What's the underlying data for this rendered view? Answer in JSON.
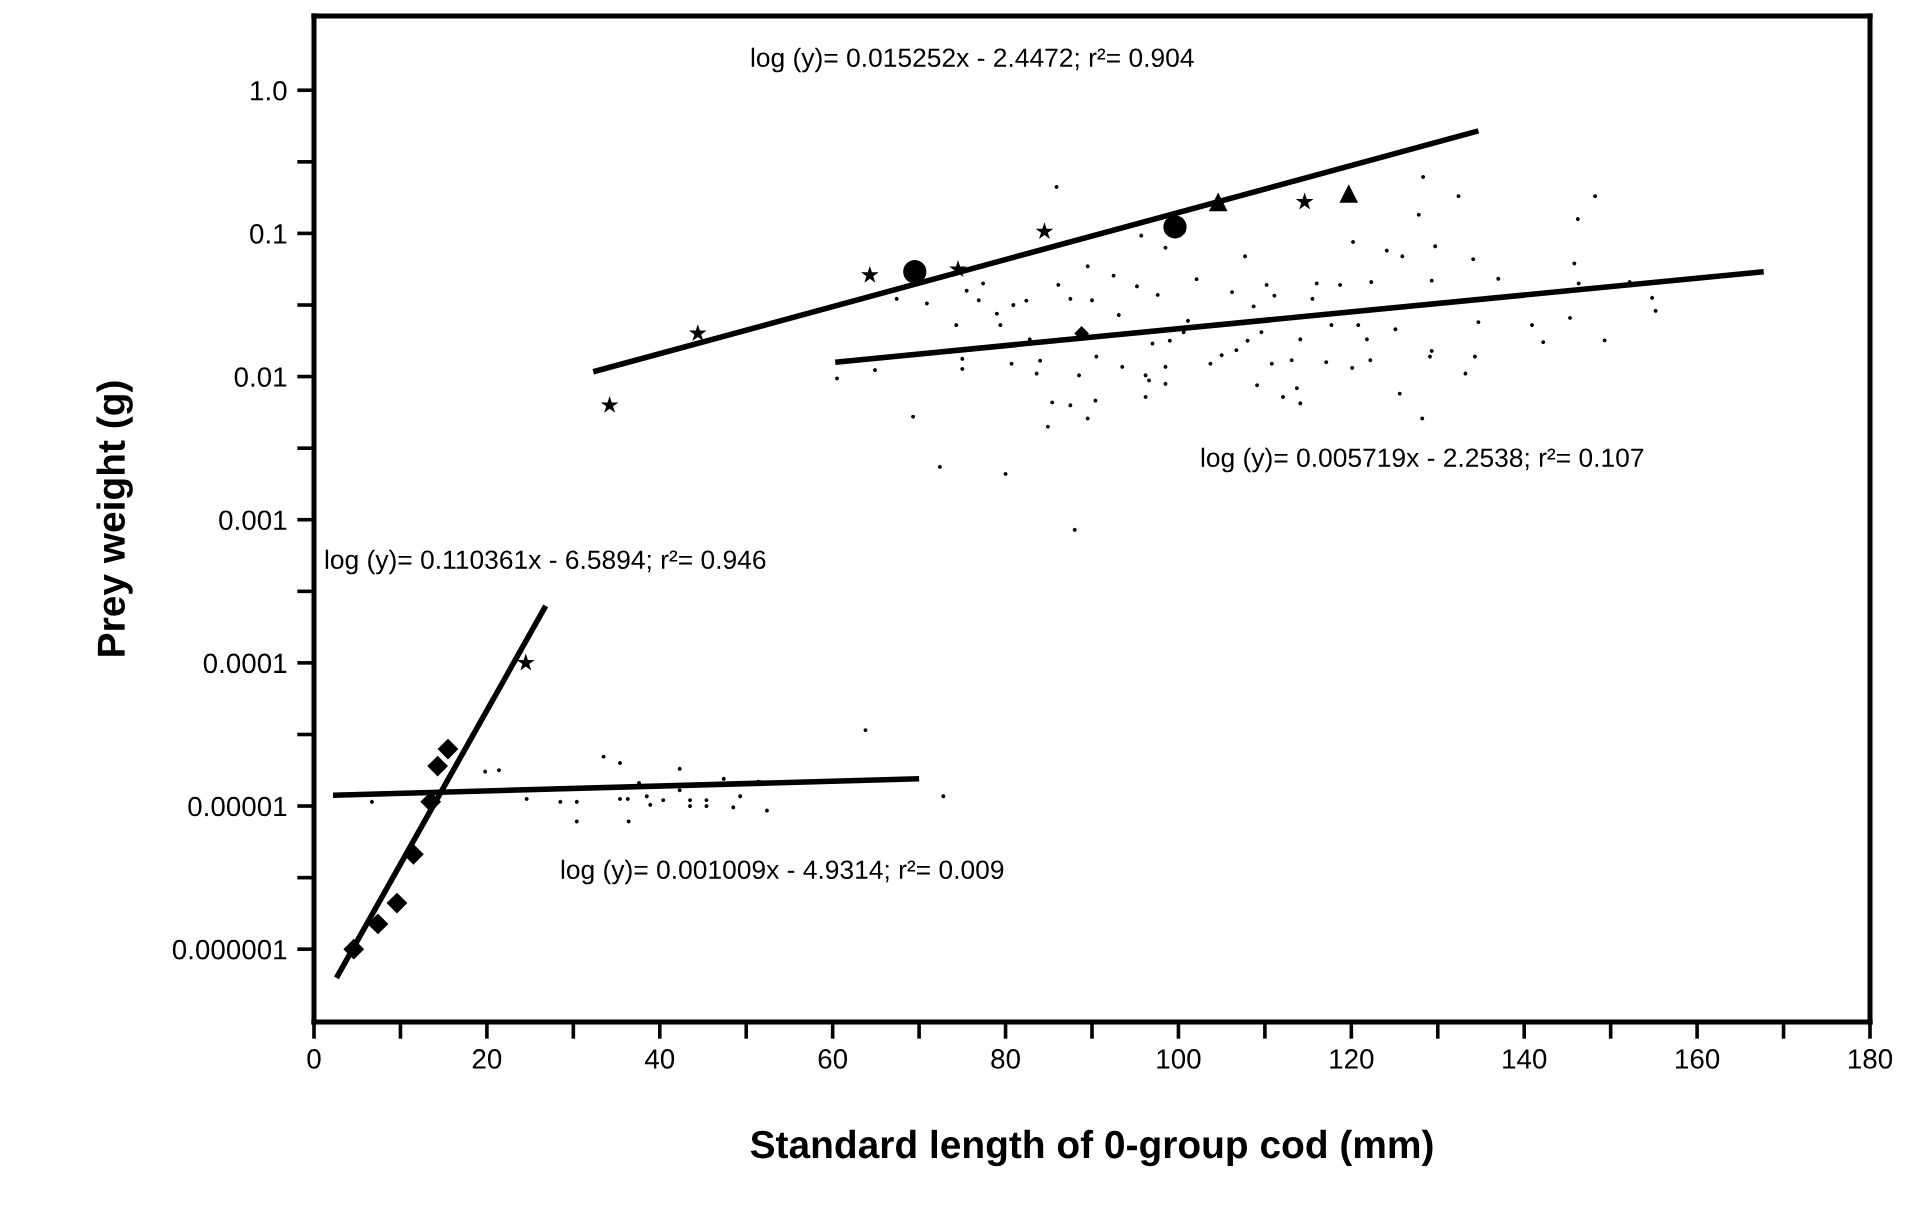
{
  "chart_data": {
    "type": "scatter",
    "xlabel": "Standard length of 0-group cod (mm)",
    "ylabel": "Prey weight (g)",
    "log": "y",
    "grid": false,
    "xlim": [
      0,
      180
    ],
    "ylim": [
      3.1e-07,
      3.3
    ],
    "xticks": [
      0,
      {
        "value": 10,
        "label": null
      },
      20,
      {
        "value": 30,
        "label": null
      },
      40,
      {
        "value": 50,
        "label": null
      },
      60,
      {
        "value": 70,
        "label": null
      },
      80,
      {
        "value": 90,
        "label": null
      },
      100,
      {
        "value": 110,
        "label": null
      },
      120,
      {
        "value": 130,
        "label": null
      },
      140,
      {
        "value": 150,
        "label": null
      },
      160,
      {
        "value": 170,
        "label": null
      },
      180
    ],
    "yticks": [
      {
        "value": 1,
        "label": "1.0"
      },
      {
        "value": 0.316,
        "label": null
      },
      {
        "value": 0.1,
        "label": "0.1"
      },
      {
        "value": 0.0316,
        "label": null
      },
      {
        "value": 0.01,
        "label": "0.01"
      },
      {
        "value": 0.00316,
        "label": null
      },
      {
        "value": 0.001,
        "label": "0.001"
      },
      {
        "value": 0.000316,
        "label": null
      },
      {
        "value": 0.0001,
        "label": "0.0001"
      },
      {
        "value": 3.16e-05,
        "label": null
      },
      {
        "value": 1e-05,
        "label": "0.00001"
      },
      {
        "value": 3.16e-06,
        "label": null
      },
      {
        "value": 1e-06,
        "label": "0.000001"
      }
    ],
    "annotations": [
      "log (y)= 0.015252x - 2.4472; r²= 0.904",
      "log (y)= 0.005719x - 2.2538; r²= 0.107",
      "log (y)= 0.110361x - 6.5894; r²= 0.946",
      "log (y)= 0.001009x - 4.9314; r²= 0.009"
    ],
    "series": [
      {
        "marker": "circle",
        "color": "#000000",
        "x": [
          60.5,
          64.9,
          67.4,
          69.3,
          70.9,
          72.4,
          74.3,
          75.0,
          75.0,
          75.5,
          76.9,
          77.4,
          79.0,
          79.4,
          80.0,
          80.7,
          80.9,
          82.4,
          82.8,
          83.6,
          84.0,
          84.9,
          85.4,
          86.1,
          87.5,
          87.5,
          88.0,
          88.5,
          89.5,
          89.5,
          90.0,
          90.4,
          90.5,
          92.5,
          93.1,
          93.5,
          95.2,
          95.7,
          96.2,
          96.2,
          96.6,
          97.0,
          97.6,
          98.5,
          98.5,
          98.5,
          99.0,
          100.6,
          101.1,
          102.1,
          103.7,
          105.0,
          106.2,
          106.7,
          107.7,
          108.0,
          108.7,
          109.1,
          109.6,
          110.2,
          110.8,
          111.1,
          112.1,
          113.1,
          113.7,
          114.1,
          114.1,
          115.5,
          116.0,
          117.1,
          117.7,
          118.7,
          120.1,
          120.2,
          120.8,
          121.8,
          122.2,
          122.3,
          124.1,
          125.1,
          125.6,
          125.9,
          127.8,
          128.2,
          129.1,
          129.3,
          129.7,
          133.2,
          134.1,
          134.3,
          134.7,
          137.0,
          132.4,
          128.3,
          140.9,
          142.2,
          145.3,
          145.8,
          146.3,
          146.2,
          148.2,
          149.3,
          152.2,
          154.8,
          155.2,
          129.3,
          85.9,
          6.7,
          19.8,
          21.4,
          24.6,
          28.5,
          30.4,
          30.4,
          33.5,
          35.4,
          35.4,
          36.3,
          36.4,
          37.6,
          38.5,
          38.9,
          40.4,
          42.3,
          42.3,
          43.5,
          43.5,
          45.4,
          45.4,
          47.4,
          48.5,
          49.3,
          51.4,
          52.4,
          63.8,
          72.8
        ],
        "values": [
          0.0097,
          0.0111,
          0.0349,
          0.00525,
          0.0324,
          0.00234,
          0.0229,
          0.0133,
          0.0113,
          0.0398,
          0.0341,
          0.0447,
          0.0275,
          0.0229,
          0.00209,
          0.0123,
          0.0316,
          0.0339,
          0.0182,
          0.0105,
          0.0129,
          0.00447,
          0.0066,
          0.0437,
          0.0349,
          0.0063,
          0.00085,
          0.0102,
          0.0051,
          0.0589,
          0.0341,
          0.0068,
          0.0138,
          0.0507,
          0.0269,
          0.0117,
          0.0427,
          0.0966,
          0.0102,
          0.0072,
          0.0094,
          0.017,
          0.0372,
          0.0794,
          0.0117,
          0.0089,
          0.0178,
          0.0204,
          0.0245,
          0.0479,
          0.0123,
          0.0141,
          0.0389,
          0.0153,
          0.0692,
          0.0178,
          0.0309,
          0.0087,
          0.0204,
          0.0437,
          0.0123,
          0.0367,
          0.0072,
          0.013,
          0.0083,
          0.0065,
          0.0182,
          0.0349,
          0.0447,
          0.0126,
          0.0229,
          0.0437,
          0.0115,
          0.0871,
          0.0229,
          0.0182,
          0.013,
          0.0457,
          0.0759,
          0.0214,
          0.0076,
          0.0692,
          0.135,
          0.0051,
          0.0138,
          0.0468,
          0.0813,
          0.0105,
          0.0661,
          0.0138,
          0.024,
          0.0482,
          0.182,
          0.248,
          0.0229,
          0.0174,
          0.0257,
          0.0617,
          0.0447,
          0.126,
          0.182,
          0.0179,
          0.0457,
          0.0355,
          0.0288,
          0.0151,
          0.211,
          1.07e-05,
          1.74e-05,
          1.78e-05,
          1.12e-05,
          1.07e-05,
          1.07e-05,
          7.8e-06,
          2.21e-05,
          2e-05,
          1.12e-05,
          1.12e-05,
          7.8e-06,
          1.45e-05,
          1.17e-05,
          1.02e-05,
          1.1e-05,
          1.82e-05,
          1.29e-05,
          1.1e-05,
          1e-05,
          1.1e-05,
          1e-05,
          1.55e-05,
          9.8e-06,
          1.17e-05,
          1.48e-05,
          9.3e-06,
          3.39e-05,
          1.17e-05
        ]
      },
      {
        "marker": "diamond",
        "color": "#000000",
        "x": [
          4.6,
          7.4,
          9.6,
          11.5,
          13.5,
          14.3,
          15.5
        ],
        "values": [
          1e-06,
          1.5e-06,
          2.1e-06,
          4.6e-06,
          1.07e-05,
          1.9e-05,
          2.5e-05
        ]
      },
      {
        "marker": "star",
        "color": "#000000",
        "x": [
          24.5,
          34.2,
          44.4,
          64.3,
          74.5,
          84.5,
          114.6
        ],
        "values": [
          0.0001,
          0.0063,
          0.02,
          0.051,
          0.056,
          0.103,
          0.166
        ]
      },
      {
        "marker": "circle",
        "color": "#000000",
        "x": [
          69.5,
          99.6
        ],
        "values": [
          0.054,
          0.111
        ]
      },
      {
        "marker": "triangle",
        "color": "#000000",
        "x": [
          104.6,
          119.7
        ],
        "values": [
          0.166,
          0.19
        ]
      },
      {
        "marker": "diamond",
        "color": "#000000",
        "x": [
          88.8
        ],
        "values": [
          0.02
        ]
      },
      {
        "type": "line",
        "line_style": "solid",
        "color": "#000000",
        "x": [
          32.3,
          134.7
        ],
        "values": [
          0.0108,
          0.52
        ]
      },
      {
        "type": "line",
        "line_style": "solid",
        "color": "#000000",
        "x": [
          60.3,
          167.7
        ],
        "values": [
          0.0126,
          0.054
        ]
      },
      {
        "type": "line",
        "line_style": "solid",
        "color": "#000000",
        "x": [
          2.6,
          26.8
        ],
        "values": [
          6.3e-07,
          0.00025
        ]
      },
      {
        "type": "line",
        "line_style": "solid",
        "color": "#000000",
        "x": [
          2.2,
          70.0
        ],
        "values": [
          1.19e-05,
          1.55e-05
        ]
      }
    ]
  }
}
